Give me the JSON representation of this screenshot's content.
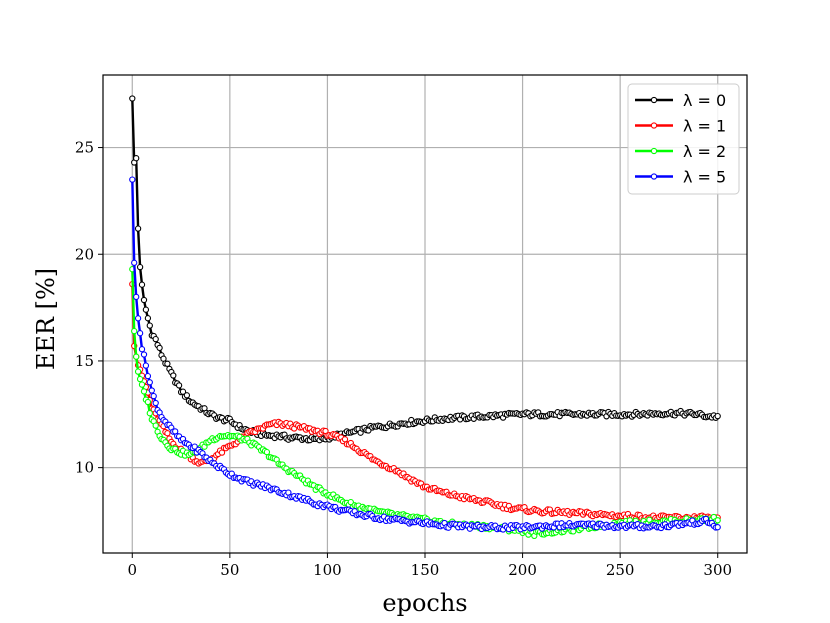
{
  "chart_data": {
    "type": "line",
    "xlabel": "epochs",
    "ylabel": "EER [%]",
    "xlim": [
      -15,
      315
    ],
    "ylim": [
      6.0,
      28.4
    ],
    "xticks": [
      0,
      50,
      100,
      150,
      200,
      250,
      300
    ],
    "yticks": [
      10,
      15,
      20,
      25
    ],
    "grid": true,
    "legend_position": "top-right",
    "series": [
      {
        "name": "λ = 0",
        "color": "#000000",
        "marker": "circle",
        "keypoints": [
          [
            0,
            27.3
          ],
          [
            1,
            24.3
          ],
          [
            2,
            24.5
          ],
          [
            3,
            21.2
          ],
          [
            4,
            19.4
          ],
          [
            5,
            18.5
          ],
          [
            6,
            17.8
          ],
          [
            8,
            17.0
          ],
          [
            10,
            16.3
          ],
          [
            12,
            16.0
          ],
          [
            15,
            15.3
          ],
          [
            20,
            14.4
          ],
          [
            25,
            13.6
          ],
          [
            30,
            13.1
          ],
          [
            35,
            12.8
          ],
          [
            40,
            12.5
          ],
          [
            45,
            12.3
          ],
          [
            50,
            12.2
          ],
          [
            55,
            11.9
          ],
          [
            60,
            11.7
          ],
          [
            65,
            11.6
          ],
          [
            70,
            11.5
          ],
          [
            75,
            11.5
          ],
          [
            80,
            11.4
          ],
          [
            85,
            11.4
          ],
          [
            90,
            11.35
          ],
          [
            95,
            11.3
          ],
          [
            100,
            11.4
          ],
          [
            105,
            11.5
          ],
          [
            110,
            11.6
          ],
          [
            115,
            11.7
          ],
          [
            120,
            11.8
          ],
          [
            125,
            11.9
          ],
          [
            130,
            11.95
          ],
          [
            140,
            12.1
          ],
          [
            150,
            12.2
          ],
          [
            160,
            12.3
          ],
          [
            170,
            12.35
          ],
          [
            180,
            12.4
          ],
          [
            190,
            12.45
          ],
          [
            200,
            12.5
          ],
          [
            210,
            12.5
          ],
          [
            220,
            12.5
          ],
          [
            230,
            12.5
          ],
          [
            240,
            12.5
          ],
          [
            250,
            12.5
          ],
          [
            260,
            12.5
          ],
          [
            270,
            12.55
          ],
          [
            280,
            12.55
          ],
          [
            290,
            12.5
          ],
          [
            295,
            12.4
          ],
          [
            300,
            12.4
          ]
        ]
      },
      {
        "name": "λ = 1",
        "color": "#ff0000",
        "marker": "circle",
        "keypoints": [
          [
            0,
            18.6
          ],
          [
            1,
            15.7
          ],
          [
            2,
            15.2
          ],
          [
            3,
            14.8
          ],
          [
            4,
            14.6
          ],
          [
            5,
            14.3
          ],
          [
            8,
            13.5
          ],
          [
            10,
            12.8
          ],
          [
            15,
            12.0
          ],
          [
            20,
            11.2
          ],
          [
            25,
            10.8
          ],
          [
            30,
            10.5
          ],
          [
            35,
            10.2
          ],
          [
            40,
            10.4
          ],
          [
            45,
            10.7
          ],
          [
            50,
            11.0
          ],
          [
            55,
            11.3
          ],
          [
            60,
            11.6
          ],
          [
            65,
            11.8
          ],
          [
            70,
            12.0
          ],
          [
            75,
            12.05
          ],
          [
            80,
            12.0
          ],
          [
            85,
            11.9
          ],
          [
            90,
            11.8
          ],
          [
            95,
            11.7
          ],
          [
            100,
            11.6
          ],
          [
            105,
            11.4
          ],
          [
            110,
            11.2
          ],
          [
            115,
            10.9
          ],
          [
            120,
            10.6
          ],
          [
            125,
            10.3
          ],
          [
            130,
            10.1
          ],
          [
            135,
            9.9
          ],
          [
            140,
            9.6
          ],
          [
            145,
            9.35
          ],
          [
            150,
            9.1
          ],
          [
            155,
            8.95
          ],
          [
            160,
            8.8
          ],
          [
            165,
            8.7
          ],
          [
            170,
            8.6
          ],
          [
            175,
            8.5
          ],
          [
            180,
            8.4
          ],
          [
            185,
            8.3
          ],
          [
            190,
            8.2
          ],
          [
            195,
            8.1
          ],
          [
            200,
            8.05
          ],
          [
            210,
            7.95
          ],
          [
            220,
            7.9
          ],
          [
            230,
            7.85
          ],
          [
            240,
            7.8
          ],
          [
            250,
            7.75
          ],
          [
            260,
            7.7
          ],
          [
            270,
            7.65
          ],
          [
            280,
            7.65
          ],
          [
            290,
            7.65
          ],
          [
            300,
            7.6
          ]
        ]
      },
      {
        "name": "λ = 2",
        "color": "#00ff00",
        "marker": "circle",
        "keypoints": [
          [
            0,
            19.3
          ],
          [
            1,
            16.4
          ],
          [
            2,
            15.2
          ],
          [
            3,
            14.5
          ],
          [
            5,
            13.8
          ],
          [
            8,
            13.0
          ],
          [
            10,
            12.3
          ],
          [
            15,
            11.4
          ],
          [
            20,
            10.9
          ],
          [
            25,
            10.7
          ],
          [
            30,
            10.6
          ],
          [
            35,
            10.9
          ],
          [
            40,
            11.3
          ],
          [
            45,
            11.5
          ],
          [
            50,
            11.5
          ],
          [
            55,
            11.4
          ],
          [
            60,
            11.2
          ],
          [
            65,
            10.9
          ],
          [
            70,
            10.6
          ],
          [
            75,
            10.2
          ],
          [
            80,
            9.9
          ],
          [
            85,
            9.6
          ],
          [
            90,
            9.3
          ],
          [
            95,
            9.0
          ],
          [
            100,
            8.8
          ],
          [
            105,
            8.55
          ],
          [
            110,
            8.35
          ],
          [
            115,
            8.2
          ],
          [
            120,
            8.1
          ],
          [
            125,
            7.95
          ],
          [
            130,
            7.85
          ],
          [
            140,
            7.7
          ],
          [
            150,
            7.55
          ],
          [
            160,
            7.4
          ],
          [
            170,
            7.3
          ],
          [
            180,
            7.25
          ],
          [
            190,
            7.15
          ],
          [
            200,
            7.05
          ],
          [
            205,
            6.9
          ],
          [
            210,
            6.95
          ],
          [
            220,
            7.05
          ],
          [
            230,
            7.15
          ],
          [
            240,
            7.3
          ],
          [
            250,
            7.4
          ],
          [
            260,
            7.45
          ],
          [
            270,
            7.45
          ],
          [
            280,
            7.5
          ],
          [
            290,
            7.55
          ],
          [
            300,
            7.6
          ]
        ]
      },
      {
        "name": "λ = 5",
        "color": "#0000ff",
        "marker": "circle",
        "keypoints": [
          [
            0,
            23.5
          ],
          [
            1,
            19.6
          ],
          [
            2,
            18.0
          ],
          [
            3,
            17.0
          ],
          [
            4,
            16.3
          ],
          [
            5,
            15.6
          ],
          [
            6,
            15.2
          ],
          [
            8,
            14.4
          ],
          [
            10,
            13.6
          ],
          [
            12,
            13.0
          ],
          [
            15,
            12.4
          ],
          [
            20,
            11.8
          ],
          [
            25,
            11.3
          ],
          [
            30,
            11.0
          ],
          [
            35,
            10.7
          ],
          [
            40,
            10.3
          ],
          [
            45,
            10.0
          ],
          [
            50,
            9.7
          ],
          [
            55,
            9.5
          ],
          [
            60,
            9.3
          ],
          [
            65,
            9.2
          ],
          [
            70,
            9.05
          ],
          [
            75,
            8.9
          ],
          [
            80,
            8.75
          ],
          [
            85,
            8.6
          ],
          [
            90,
            8.45
          ],
          [
            95,
            8.3
          ],
          [
            100,
            8.2
          ],
          [
            105,
            8.05
          ],
          [
            110,
            7.95
          ],
          [
            115,
            7.85
          ],
          [
            120,
            7.75
          ],
          [
            130,
            7.6
          ],
          [
            140,
            7.5
          ],
          [
            150,
            7.4
          ],
          [
            160,
            7.3
          ],
          [
            170,
            7.25
          ],
          [
            180,
            7.2
          ],
          [
            190,
            7.2
          ],
          [
            200,
            7.2
          ],
          [
            210,
            7.25
          ],
          [
            220,
            7.3
          ],
          [
            230,
            7.3
          ],
          [
            240,
            7.3
          ],
          [
            250,
            7.25
          ],
          [
            260,
            7.25
          ],
          [
            270,
            7.25
          ],
          [
            280,
            7.35
          ],
          [
            290,
            7.45
          ],
          [
            295,
            7.5
          ],
          [
            300,
            7.15
          ]
        ]
      }
    ]
  }
}
